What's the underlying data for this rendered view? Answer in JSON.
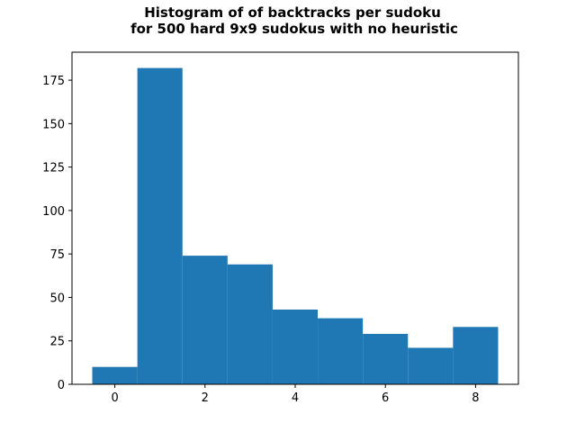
{
  "chart_data": {
    "type": "bar",
    "title": [
      "Histogram of of backtracks per sudoku",
      "for 500 hard 9x9 sudokus with no heuristic"
    ],
    "xlabel": "",
    "ylabel": "",
    "bins": [
      {
        "x": 0,
        "value": 10
      },
      {
        "x": 1,
        "value": 182
      },
      {
        "x": 2,
        "value": 74
      },
      {
        "x": 3,
        "value": 69
      },
      {
        "x": 4,
        "value": 43
      },
      {
        "x": 5,
        "value": 38
      },
      {
        "x": 6,
        "value": 29
      },
      {
        "x": 7,
        "value": 21
      },
      {
        "x": 8,
        "value": 33
      }
    ],
    "bin_width": 1,
    "xlim": [
      -0.95,
      8.95
    ],
    "ylim": [
      0,
      191.1
    ],
    "xticks": [
      0,
      2,
      4,
      6,
      8
    ],
    "xtick_labels": [
      "0",
      "2",
      "4",
      "6",
      "8"
    ],
    "yticks": [
      0,
      25,
      50,
      75,
      100,
      125,
      150,
      175
    ],
    "ytick_labels": [
      "0",
      "25",
      "50",
      "75",
      "100",
      "125",
      "150",
      "175"
    ],
    "bar_color": "#1f77b4",
    "grid": false,
    "legend": "none"
  }
}
